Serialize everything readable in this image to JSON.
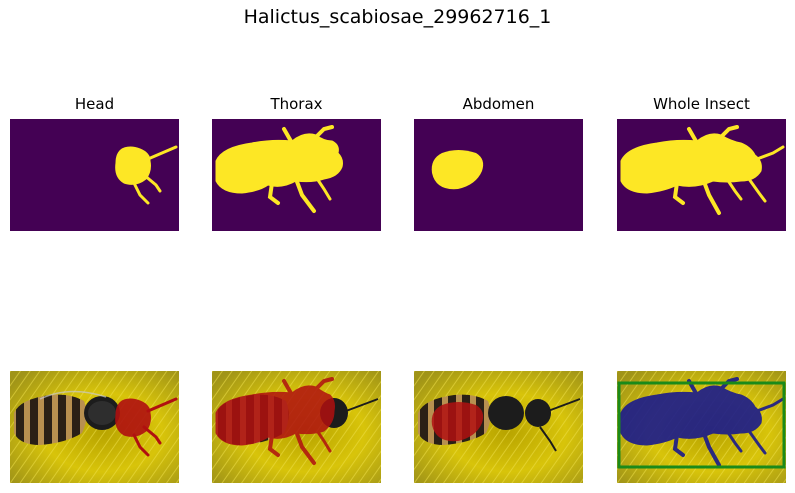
{
  "figure": {
    "title": "Halictus_scabiosae_29962716_1"
  },
  "columns": [
    {
      "key": "head",
      "title": "Head"
    },
    {
      "key": "thorax",
      "title": "Thorax"
    },
    {
      "key": "abdomen",
      "title": "Abdomen"
    },
    {
      "key": "whole",
      "title": "Whole Insect"
    }
  ],
  "colors": {
    "mask_background": "#440154",
    "mask_foreground": "#fde725",
    "overlay_part": "#b01010",
    "overlay_whole": "#1a1a8c",
    "bbox": "#1a8a1a",
    "photo_background": "#d8c40a"
  }
}
